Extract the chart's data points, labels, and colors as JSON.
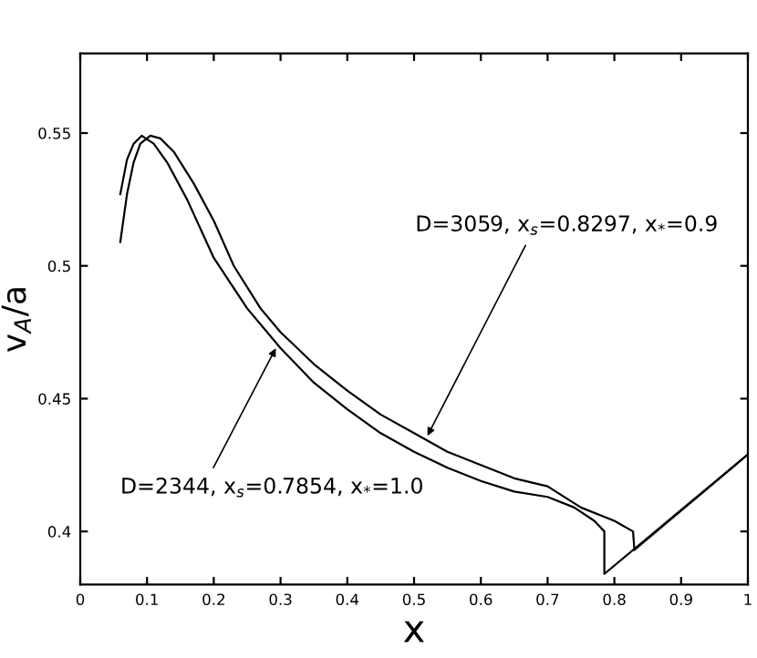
{
  "chart_data": {
    "type": "line",
    "xlabel": "x",
    "ylabel": "v$_{A}$/a",
    "series": [
      {
        "color": "#000000",
        "x": [
          0.06,
          0.07,
          0.08,
          0.092,
          0.11,
          0.13,
          0.16,
          0.2,
          0.25,
          0.3,
          0.35,
          0.4,
          0.45,
          0.5,
          0.55,
          0.6,
          0.65,
          0.7,
          0.74,
          0.77,
          0.785,
          0.785,
          1.0
        ],
        "values": [
          0.527,
          0.54,
          0.546,
          0.549,
          0.546,
          0.539,
          0.525,
          0.503,
          0.484,
          0.469,
          0.456,
          0.446,
          0.437,
          0.43,
          0.424,
          0.419,
          0.415,
          0.413,
          0.409,
          0.404,
          0.4,
          0.384,
          0.429
        ]
      },
      {
        "color": "#000000",
        "x": [
          0.06,
          0.07,
          0.08,
          0.09,
          0.105,
          0.12,
          0.14,
          0.17,
          0.2,
          0.23,
          0.27,
          0.3,
          0.35,
          0.4,
          0.45,
          0.5,
          0.55,
          0.6,
          0.65,
          0.7,
          0.75,
          0.8,
          0.828,
          0.83,
          1.0
        ],
        "values": [
          0.509,
          0.527,
          0.539,
          0.546,
          0.549,
          0.548,
          0.543,
          0.531,
          0.517,
          0.5,
          0.484,
          0.475,
          0.463,
          0.453,
          0.444,
          0.437,
          0.43,
          0.425,
          0.42,
          0.417,
          0.409,
          0.404,
          0.4,
          0.393,
          0.429
        ]
      }
    ],
    "annotations": [
      {
        "text": "D=3059, x$_{s}$=0.8297, x$_{*}$=0.9",
        "x": 0.52,
        "y": 0.436
      },
      {
        "text": "D=2344, x$_{s}$=0.7854, x$_{*}$=1.0",
        "x": 0.293,
        "y": 0.469
      }
    ],
    "xlim": [
      0,
      1
    ],
    "ylim": [
      0.38,
      0.58
    ],
    "xticks": [
      0,
      0.1,
      0.2,
      0.3,
      0.4,
      0.5,
      0.6,
      0.7,
      0.8,
      0.9,
      1
    ],
    "yticks": [
      0.4,
      0.45,
      0.5,
      0.55
    ],
    "grid": false,
    "legend": false,
    "marker": "none",
    "line_style": "solid"
  }
}
